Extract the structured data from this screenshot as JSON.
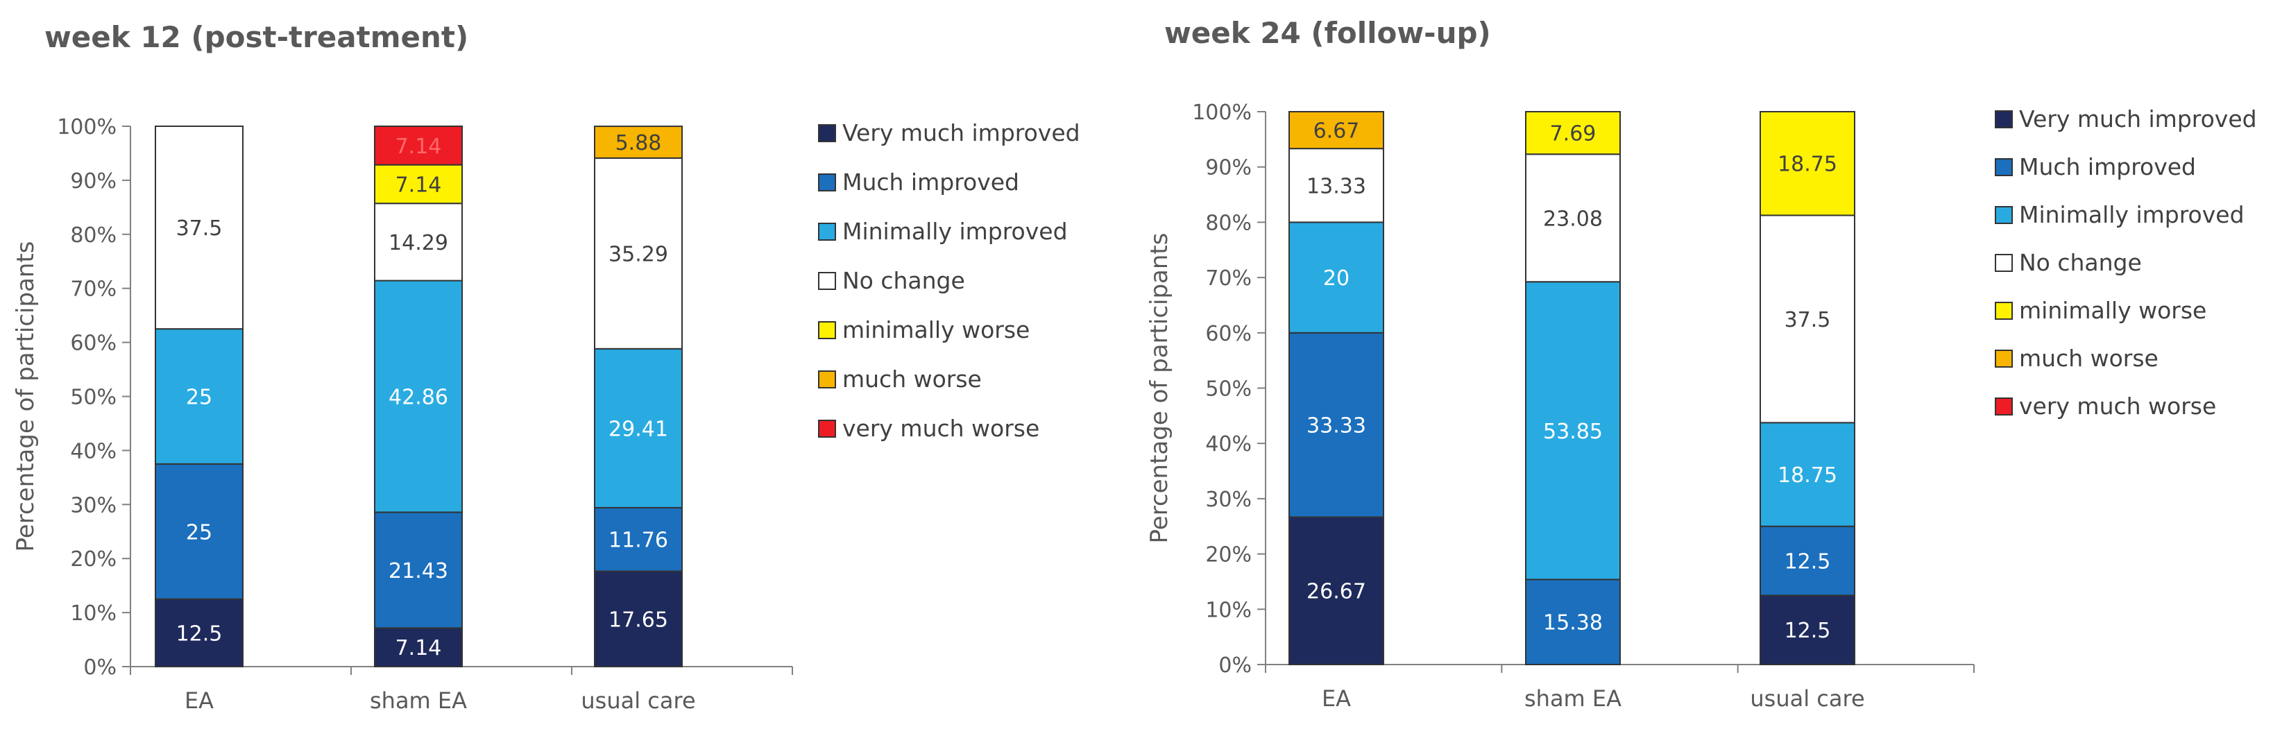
{
  "chart_data": [
    {
      "type": "bar",
      "stacked": true,
      "title": "week 12 (post-treatment)",
      "xlabel": "",
      "ylabel": "Percentage of participants",
      "ylim": [
        0,
        100
      ],
      "yticks": [
        "0%",
        "10%",
        "20%",
        "30%",
        "40%",
        "50%",
        "60%",
        "70%",
        "80%",
        "90%",
        "100%"
      ],
      "categories": [
        "EA",
        "sham EA",
        "usual care"
      ],
      "series": [
        {
          "name": "Very much improved",
          "color": "#1f2a5c",
          "label_color": "#ffffff",
          "values": [
            12.5,
            7.14,
            17.65
          ],
          "labels": [
            "12.5",
            "7.14",
            "17.65"
          ]
        },
        {
          "name": "Much improved",
          "color": "#1b6fbd",
          "label_color": "#ffffff",
          "values": [
            25,
            21.43,
            11.76
          ],
          "labels": [
            "25",
            "21.43",
            "11.76"
          ]
        },
        {
          "name": "Minimally improved",
          "color": "#29abe2",
          "label_color": "#ffffff",
          "values": [
            25,
            42.86,
            29.41
          ],
          "labels": [
            "25",
            "42.86",
            "29.41"
          ]
        },
        {
          "name": "No change",
          "color": "#ffffff",
          "label_color": "#404040",
          "values": [
            37.5,
            14.29,
            35.29
          ],
          "labels": [
            "37.5",
            "14.29",
            "35.29"
          ]
        },
        {
          "name": "minimally worse",
          "color": "#fff200",
          "label_color": "#404040",
          "values": [
            0,
            7.14,
            0
          ],
          "labels": [
            "",
            "7.14",
            ""
          ]
        },
        {
          "name": "much worse",
          "color": "#f7b500",
          "label_color": "#404040",
          "values": [
            0,
            0,
            5.88
          ],
          "labels": [
            "",
            "",
            "5.88"
          ]
        },
        {
          "name": "very much worse",
          "color": "#ee1c25",
          "label_color": "#ff6a6a",
          "values": [
            0,
            7.14,
            0
          ],
          "labels": [
            "",
            "7.14",
            ""
          ]
        }
      ],
      "legend_position": "right"
    },
    {
      "type": "bar",
      "stacked": true,
      "title": "week 24 (follow-up)",
      "xlabel": "",
      "ylabel": "Percentage of participants",
      "ylim": [
        0,
        100
      ],
      "yticks": [
        "0%",
        "10%",
        "20%",
        "30%",
        "40%",
        "50%",
        "60%",
        "70%",
        "80%",
        "90%",
        "100%"
      ],
      "categories": [
        "EA",
        "sham EA",
        "usual care"
      ],
      "series": [
        {
          "name": "Very much improved",
          "color": "#1f2a5c",
          "label_color": "#ffffff",
          "values": [
            26.67,
            0,
            12.5
          ],
          "labels": [
            "26.67",
            "",
            "12.5"
          ]
        },
        {
          "name": "Much improved",
          "color": "#1b6fbd",
          "label_color": "#ffffff",
          "values": [
            33.33,
            15.38,
            12.5
          ],
          "labels": [
            "33.33",
            "15.38",
            "12.5"
          ]
        },
        {
          "name": "Minimally improved",
          "color": "#29abe2",
          "label_color": "#ffffff",
          "values": [
            20,
            53.85,
            18.75
          ],
          "labels": [
            "20",
            "53.85",
            "18.75"
          ]
        },
        {
          "name": "No change",
          "color": "#ffffff",
          "label_color": "#404040",
          "values": [
            13.33,
            23.08,
            37.5
          ],
          "labels": [
            "13.33",
            "23.08",
            "37.5"
          ]
        },
        {
          "name": "minimally worse",
          "color": "#fff200",
          "label_color": "#404040",
          "values": [
            0,
            7.69,
            18.75
          ],
          "labels": [
            "",
            "7.69",
            "18.75"
          ]
        },
        {
          "name": "much worse",
          "color": "#f7b500",
          "label_color": "#404040",
          "values": [
            6.67,
            0,
            0
          ],
          "labels": [
            "6.67",
            "",
            ""
          ]
        },
        {
          "name": "very much worse",
          "color": "#ee1c25",
          "label_color": "#ffffff",
          "values": [
            0,
            0,
            0
          ],
          "labels": [
            "",
            "",
            ""
          ]
        }
      ],
      "legend_position": "right"
    }
  ]
}
